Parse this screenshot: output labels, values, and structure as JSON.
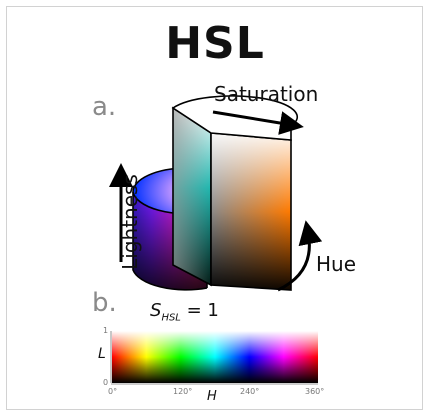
{
  "title": "HSL",
  "panel_a": {
    "label": "a.",
    "saturation": "Saturation",
    "hue": "Hue",
    "lightness": "Lightness"
  },
  "panel_b": {
    "label": "b.",
    "s_var": "S",
    "s_sub": "HSL",
    "s_value": " = 1",
    "l_axis": "L",
    "h_axis": "H",
    "l_ticks": [
      "1",
      "0"
    ],
    "h_ticks": [
      "0°",
      "120°",
      "240°",
      "360°"
    ]
  }
}
